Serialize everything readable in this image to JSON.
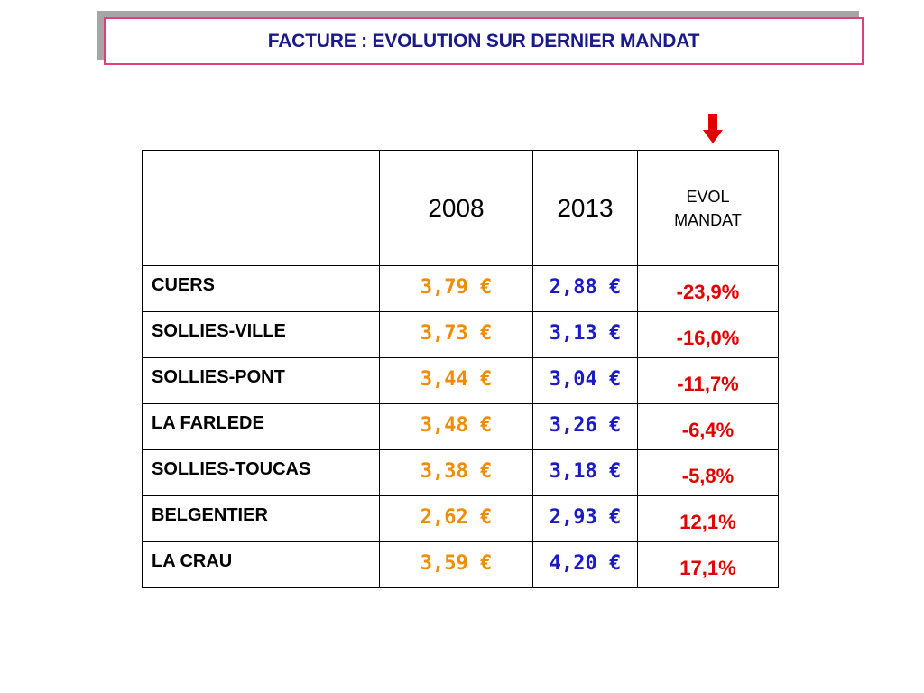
{
  "title": "FACTURE : EVOLUTION SUR DERNIER MANDAT",
  "colors": {
    "title_text": "#1a1a8c",
    "title_border": "#e0407a",
    "value_2008": "#f08c00",
    "value_2013": "#1a1ac8",
    "evolution": "#e00000",
    "arrow": "#e00000"
  },
  "indicator_icon": "red-down-arrow-icon",
  "table": {
    "headers": {
      "name": "",
      "year1": "2008",
      "year2": "2013",
      "evol_line1": "EVOL",
      "evol_line2": "MANDAT"
    },
    "rows": [
      {
        "name": "CUERS",
        "v2008": "3,79 €",
        "v2013": "2,88 €",
        "evol": "-23,9%"
      },
      {
        "name": "SOLLIES-VILLE",
        "v2008": "3,73 €",
        "v2013": "3,13 €",
        "evol": "-16,0%"
      },
      {
        "name": "SOLLIES-PONT",
        "v2008": "3,44 €",
        "v2013": "3,04 €",
        "evol": "-11,7%"
      },
      {
        "name": "LA FARLEDE",
        "v2008": "3,48 €",
        "v2013": "3,26 €",
        "evol": "-6,4%"
      },
      {
        "name": "SOLLIES-TOUCAS",
        "v2008": "3,38 €",
        "v2013": "3,18 €",
        "evol": "-5,8%"
      },
      {
        "name": "BELGENTIER",
        "v2008": "2,62 €",
        "v2013": "2,93 €",
        "evol": "12,1%"
      },
      {
        "name": "LA CRAU",
        "v2008": "3,59 €",
        "v2013": "4,20 €",
        "evol": "17,1%"
      }
    ]
  }
}
